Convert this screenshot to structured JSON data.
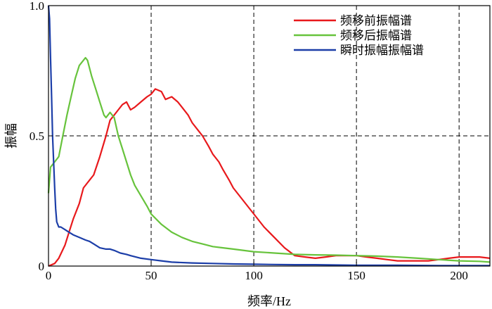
{
  "chart_data": {
    "type": "line",
    "title": "",
    "xlabel": "频率/Hz",
    "ylabel": "振幅",
    "xlim": [
      0,
      215
    ],
    "ylim": [
      0,
      1.0
    ],
    "x_ticks": [
      0,
      50,
      100,
      150,
      200
    ],
    "y_ticks": [
      0,
      0.5,
      1.0
    ],
    "x_tick_labels": [
      "0",
      "50",
      "100",
      "150",
      "200"
    ],
    "y_tick_labels": [
      "0",
      "0.5",
      "1.0"
    ],
    "grid": "dashed at x=50,100,150,200 and y=0.5",
    "legend_position": "top-right",
    "series": [
      {
        "name": "频移前振幅谱",
        "color": "#e8191c",
        "x": [
          0,
          3,
          5,
          8,
          10,
          12,
          15,
          17,
          20,
          22,
          25,
          28,
          30,
          32,
          34,
          36,
          38,
          40,
          42,
          45,
          48,
          50,
          52,
          55,
          57,
          60,
          63,
          65,
          68,
          70,
          73,
          75,
          78,
          80,
          83,
          85,
          88,
          90,
          95,
          100,
          105,
          110,
          115,
          120,
          125,
          130,
          135,
          140,
          145,
          150,
          155,
          160,
          165,
          170,
          175,
          180,
          185,
          190,
          195,
          200,
          205,
          210,
          215
        ],
        "y": [
          0.0,
          0.01,
          0.03,
          0.08,
          0.13,
          0.18,
          0.24,
          0.3,
          0.33,
          0.35,
          0.42,
          0.5,
          0.56,
          0.58,
          0.6,
          0.62,
          0.63,
          0.6,
          0.61,
          0.63,
          0.65,
          0.66,
          0.68,
          0.67,
          0.64,
          0.65,
          0.63,
          0.61,
          0.58,
          0.55,
          0.52,
          0.5,
          0.46,
          0.43,
          0.4,
          0.37,
          0.33,
          0.3,
          0.25,
          0.2,
          0.15,
          0.11,
          0.07,
          0.04,
          0.035,
          0.03,
          0.035,
          0.04,
          0.04,
          0.04,
          0.035,
          0.03,
          0.025,
          0.02,
          0.02,
          0.02,
          0.02,
          0.025,
          0.03,
          0.035,
          0.035,
          0.035,
          0.03
        ]
      },
      {
        "name": "频移后振幅谱",
        "color": "#67c33c",
        "x": [
          0,
          1,
          3,
          5,
          7,
          9,
          11,
          13,
          15,
          17,
          18,
          19,
          20,
          21,
          23,
          25,
          27,
          28,
          30,
          32,
          34,
          36,
          38,
          40,
          42,
          45,
          48,
          50,
          55,
          60,
          65,
          70,
          75,
          80,
          85,
          90,
          100,
          110,
          120,
          130,
          140,
          150,
          160,
          170,
          180,
          190,
          200,
          210,
          215
        ],
        "y": [
          0.28,
          0.38,
          0.4,
          0.42,
          0.5,
          0.58,
          0.65,
          0.72,
          0.77,
          0.79,
          0.8,
          0.79,
          0.76,
          0.73,
          0.68,
          0.63,
          0.58,
          0.57,
          0.59,
          0.57,
          0.5,
          0.45,
          0.4,
          0.35,
          0.31,
          0.27,
          0.23,
          0.2,
          0.16,
          0.13,
          0.11,
          0.095,
          0.085,
          0.075,
          0.07,
          0.065,
          0.055,
          0.05,
          0.045,
          0.043,
          0.042,
          0.04,
          0.038,
          0.035,
          0.03,
          0.025,
          0.02,
          0.018,
          0.015
        ]
      },
      {
        "name": "瞬时振幅振幅谱",
        "color": "#1c3ea8",
        "x": [
          0,
          0.5,
          1,
          1.5,
          2,
          2.5,
          3,
          3.5,
          4,
          5,
          6,
          8,
          10,
          12,
          15,
          18,
          20,
          22,
          25,
          28,
          30,
          32,
          35,
          38,
          40,
          45,
          50,
          55,
          60,
          70,
          80,
          90,
          100,
          110,
          120,
          130,
          140,
          150,
          170,
          190,
          215
        ],
        "y": [
          1.0,
          0.95,
          0.8,
          0.65,
          0.5,
          0.4,
          0.3,
          0.22,
          0.17,
          0.15,
          0.15,
          0.14,
          0.13,
          0.12,
          0.11,
          0.1,
          0.095,
          0.085,
          0.07,
          0.065,
          0.065,
          0.06,
          0.05,
          0.045,
          0.04,
          0.03,
          0.025,
          0.02,
          0.015,
          0.012,
          0.01,
          0.008,
          0.007,
          0.006,
          0.005,
          0.005,
          0.004,
          0.003,
          0.003,
          0.002,
          0.002
        ]
      }
    ]
  }
}
